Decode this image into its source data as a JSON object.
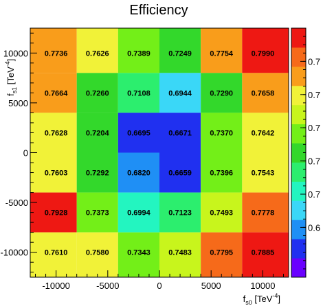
{
  "chart_data": {
    "type": "heatmap",
    "title": "Efficiency",
    "xlabel": {
      "base": "f",
      "sub": "s0",
      "units": " [TeV",
      "exp": "-4",
      "close": "]"
    },
    "ylabel": {
      "base": "f",
      "sub": "s1",
      "units": " [TeV",
      "exp": "-4",
      "close": "]"
    },
    "x_ticks": [
      "-10000",
      "-5000",
      "0",
      "5000",
      "10000"
    ],
    "y_ticks": [
      "10000",
      "5000",
      "0",
      "-5000",
      "-10000"
    ],
    "y_tick_values": [
      10000,
      5000,
      0,
      -5000,
      -10000
    ],
    "x_tick_values": [
      -10000,
      -5000,
      0,
      5000,
      10000
    ],
    "xlim": [
      -12500,
      12500
    ],
    "ylim": [
      -12500,
      12500
    ],
    "x_bin_centers": [
      -10000,
      -6000,
      -2000,
      2000,
      6000,
      10000
    ],
    "y_bin_centers": [
      10000,
      6000,
      2000,
      -2000,
      -6000,
      -10000
    ],
    "values": [
      [
        0.7736,
        0.7626,
        0.7389,
        0.7249,
        0.7754,
        0.799
      ],
      [
        0.7664,
        0.726,
        0.7108,
        0.6944,
        0.729,
        0.7658
      ],
      [
        0.7628,
        0.7204,
        0.6695,
        0.6671,
        0.737,
        0.7642
      ],
      [
        0.7603,
        0.7292,
        0.682,
        0.6659,
        0.7396,
        0.7543
      ],
      [
        0.7928,
        0.7373,
        0.6994,
        0.7123,
        0.7493,
        0.7778
      ],
      [
        0.761,
        0.758,
        0.7343,
        0.7483,
        0.7795,
        0.7885
      ]
    ],
    "labels": [
      [
        "0.7736",
        "0.7626",
        "0.7389",
        "0.7249",
        "0.7754",
        "0.7990"
      ],
      [
        "0.7664",
        "0.7260",
        "0.7108",
        "0.6944",
        "0.7290",
        "0.7658"
      ],
      [
        "0.7628",
        "0.7204",
        "0.6695",
        "0.6671",
        "0.7370",
        "0.7642"
      ],
      [
        "0.7603",
        "0.7292",
        "0.6820",
        "0.6659",
        "0.7396",
        "0.7543"
      ],
      [
        "0.7928",
        "0.7373",
        "0.6994",
        "0.7123",
        "0.7493",
        "0.7778"
      ],
      [
        "0.7610",
        "0.7580",
        "0.7343",
        "0.7483",
        "0.7795",
        "0.7885"
      ]
    ],
    "color_range": [
      0.65,
      0.8
    ],
    "colorbar_tick_labels": [
      "0.7",
      "0.7",
      "0.7",
      "0.7",
      "0.7",
      "0.6"
    ],
    "colors": {
      "palette": [
        "#6a00ff",
        "#2030f0",
        "#1f8ff5",
        "#3ad7f7",
        "#23f5c0",
        "#2cee6e",
        "#33d82b",
        "#73ef18",
        "#c8f51c",
        "#f1f238",
        "#f99d1b",
        "#f66a1a",
        "#ee1813"
      ],
      "text": "#000000",
      "axis": "#000000"
    }
  }
}
